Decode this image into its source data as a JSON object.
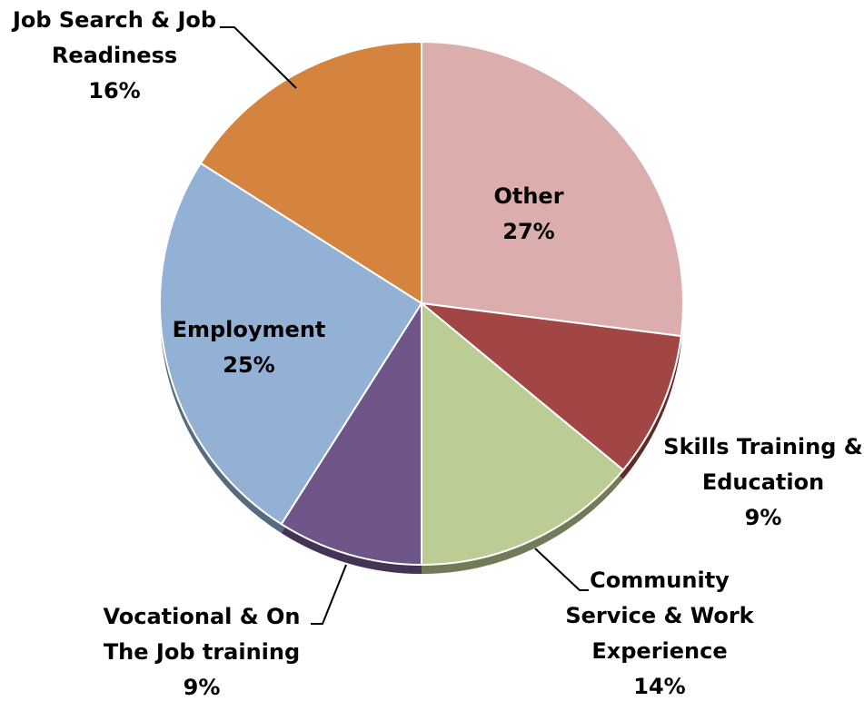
{
  "chart_data": {
    "type": "pie",
    "start_angle_deg": 0,
    "direction": "clockwise",
    "slices": [
      {
        "label": [
          "Other"
        ],
        "percent_label": "27%",
        "value": 27,
        "color": "#DBAEAD"
      },
      {
        "label": [
          "Skills Training &",
          "Education"
        ],
        "percent_label": "9%",
        "value": 9,
        "color": "#A14645"
      },
      {
        "label": [
          "Community",
          "Service & Work",
          "Experience"
        ],
        "percent_label": "14%",
        "value": 14,
        "color": "#BCCC95"
      },
      {
        "label": [
          "Vocational & On",
          "The Job training"
        ],
        "percent_label": "9%",
        "value": 9,
        "color": "#6E5689"
      },
      {
        "label": [
          "Employment"
        ],
        "percent_label": "25%",
        "value": 25,
        "color": "#93B1D5"
      },
      {
        "label": [
          "Job Search & Job",
          "Readiness"
        ],
        "percent_label": "16%",
        "value": 16,
        "color": "#D5843F"
      }
    ]
  }
}
